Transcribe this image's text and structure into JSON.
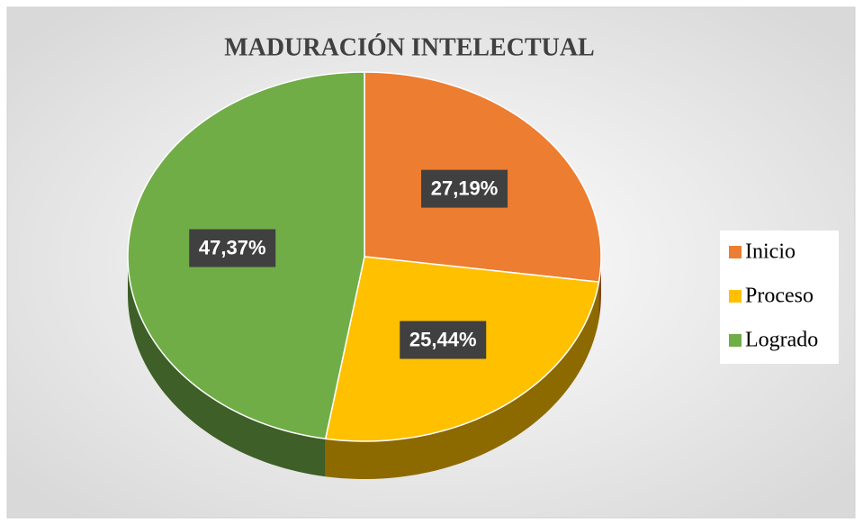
{
  "chart_data": {
    "type": "pie",
    "title": "MADURACIÓN INTELECTUAL",
    "categories": [
      "Inicio",
      "Proceso",
      "Logrado"
    ],
    "values": [
      27.19,
      25.44,
      47.37
    ],
    "value_labels": [
      "27,19%",
      "25,44%",
      "47,37%"
    ],
    "colors": [
      "#ed7d31",
      "#ffc000",
      "#70ad47"
    ],
    "legend": "right"
  }
}
